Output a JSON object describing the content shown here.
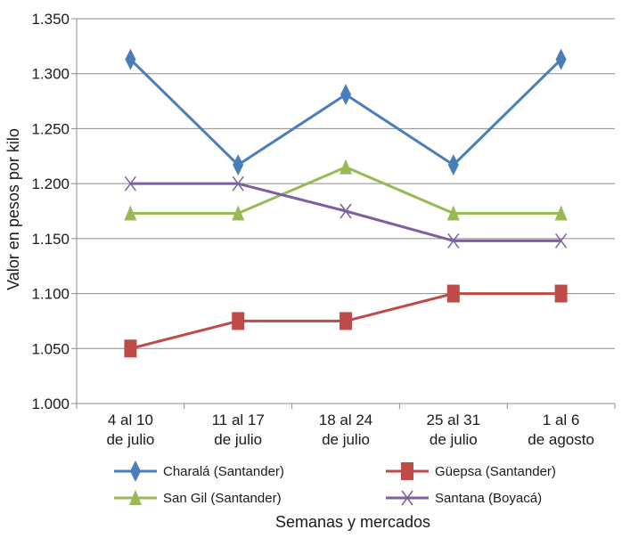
{
  "chart_data": {
    "type": "line",
    "title": "",
    "xlabel": "Semanas y mercados",
    "ylabel": "Valor en pesos por kilo",
    "ylim": [
      1000,
      1350
    ],
    "yticks": [
      1000,
      1050,
      1100,
      1150,
      1200,
      1250,
      1300,
      1350
    ],
    "ytick_labels": [
      "1.000",
      "1.050",
      "1.100",
      "1.150",
      "1.200",
      "1.250",
      "1.300",
      "1.350"
    ],
    "categories": [
      "4 al 10 de julio",
      "11 al 17 de julio",
      "18 al 24 de julio",
      "25 al 31 de julio",
      "1 al 6 de agosto"
    ],
    "category_lines": [
      [
        "4 al 10",
        "de julio"
      ],
      [
        "11 al 17",
        "de julio"
      ],
      [
        "18 al 24",
        "de julio"
      ],
      [
        "25 al 31",
        "de julio"
      ],
      [
        "1 al 6",
        "de agosto"
      ]
    ],
    "grid": "horizontal",
    "legend_position": "bottom",
    "series": [
      {
        "name": "Charalá (Santander)",
        "color": "#4a7ebb",
        "marker": "diamond",
        "values": [
          1313,
          1217,
          1281,
          1217,
          1313
        ]
      },
      {
        "name": "Güepsa (Santander)",
        "color": "#be4b48",
        "marker": "square",
        "values": [
          1050,
          1075,
          1075,
          1100,
          1100
        ]
      },
      {
        "name": "San Gil (Santander)",
        "color": "#98b954",
        "marker": "triangle",
        "values": [
          1173,
          1173,
          1215,
          1173,
          1173
        ]
      },
      {
        "name": "Santana (Boyacá)",
        "color": "#7d5fa0",
        "marker": "x",
        "values": [
          1200,
          1200,
          1175,
          1148,
          1148
        ]
      }
    ]
  }
}
